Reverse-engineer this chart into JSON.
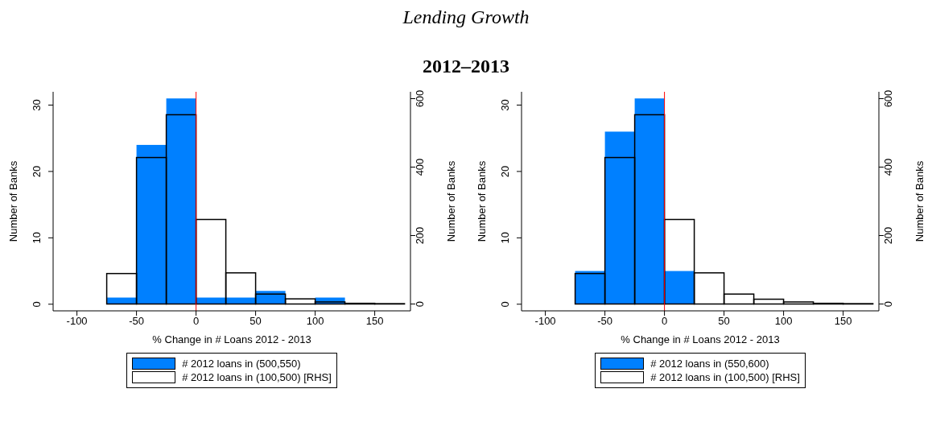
{
  "chart_data": [
    {
      "type": "histogram",
      "title": "Lending Growth",
      "subtitle": "2012–2013",
      "xlabel": "% Change in # Loans 2012 - 2013",
      "ylabel": "Number of Banks",
      "y2label": "Number of Banks",
      "bins": [
        -75,
        -50,
        -25,
        0,
        25,
        50,
        75,
        100,
        125,
        150,
        175
      ],
      "series": [
        {
          "name": "# 2012 loans in (500,550)",
          "color": "#0080ff",
          "values": [
            1,
            24,
            31,
            1,
            1,
            2,
            0,
            1,
            0,
            0
          ]
        },
        {
          "name": "# 2012 loans in (100,500) [RHS]",
          "color": "#000000",
          "axis": "y2",
          "values": [
            89,
            428,
            553,
            247,
            91,
            29,
            15,
            6,
            2,
            1
          ]
        }
      ],
      "xlim": [
        -120,
        180
      ],
      "xticks": [
        -100,
        -50,
        0,
        50,
        100,
        150
      ],
      "ylim": [
        -1,
        32
      ],
      "yticks": [
        0,
        10,
        20,
        30
      ],
      "y2lim": [
        -20,
        620
      ],
      "y2ticks": [
        0,
        200,
        400,
        600
      ],
      "ref_lines": [
        {
          "axis": "x",
          "value": 0,
          "color": "#ff0000"
        }
      ],
      "grid": false,
      "legend": "bottom"
    },
    {
      "type": "histogram",
      "xlabel": "% Change in # Loans 2012 - 2013",
      "ylabel": "Number of Banks",
      "y2label": "Number of Banks",
      "bins": [
        -75,
        -50,
        -25,
        0,
        25,
        50,
        75,
        100,
        125,
        150,
        175
      ],
      "series": [
        {
          "name": "# 2012 loans in (550,600)",
          "color": "#0080ff",
          "values": [
            5,
            26,
            31,
            5,
            0,
            0,
            0,
            0,
            0,
            0
          ]
        },
        {
          "name": "# 2012 loans in (100,500) [RHS]",
          "color": "#000000",
          "axis": "y2",
          "values": [
            89,
            428,
            553,
            247,
            91,
            29,
            14,
            6,
            2,
            1
          ]
        }
      ],
      "xlim": [
        -120,
        180
      ],
      "xticks": [
        -100,
        -50,
        0,
        50,
        100,
        150
      ],
      "ylim": [
        -1,
        32
      ],
      "yticks": [
        0,
        10,
        20,
        30
      ],
      "y2lim": [
        -20,
        620
      ],
      "y2ticks": [
        0,
        200,
        400,
        600
      ],
      "ref_lines": [
        {
          "axis": "x",
          "value": 0,
          "color": "#ff0000"
        }
      ],
      "grid": false,
      "legend": "bottom"
    }
  ]
}
